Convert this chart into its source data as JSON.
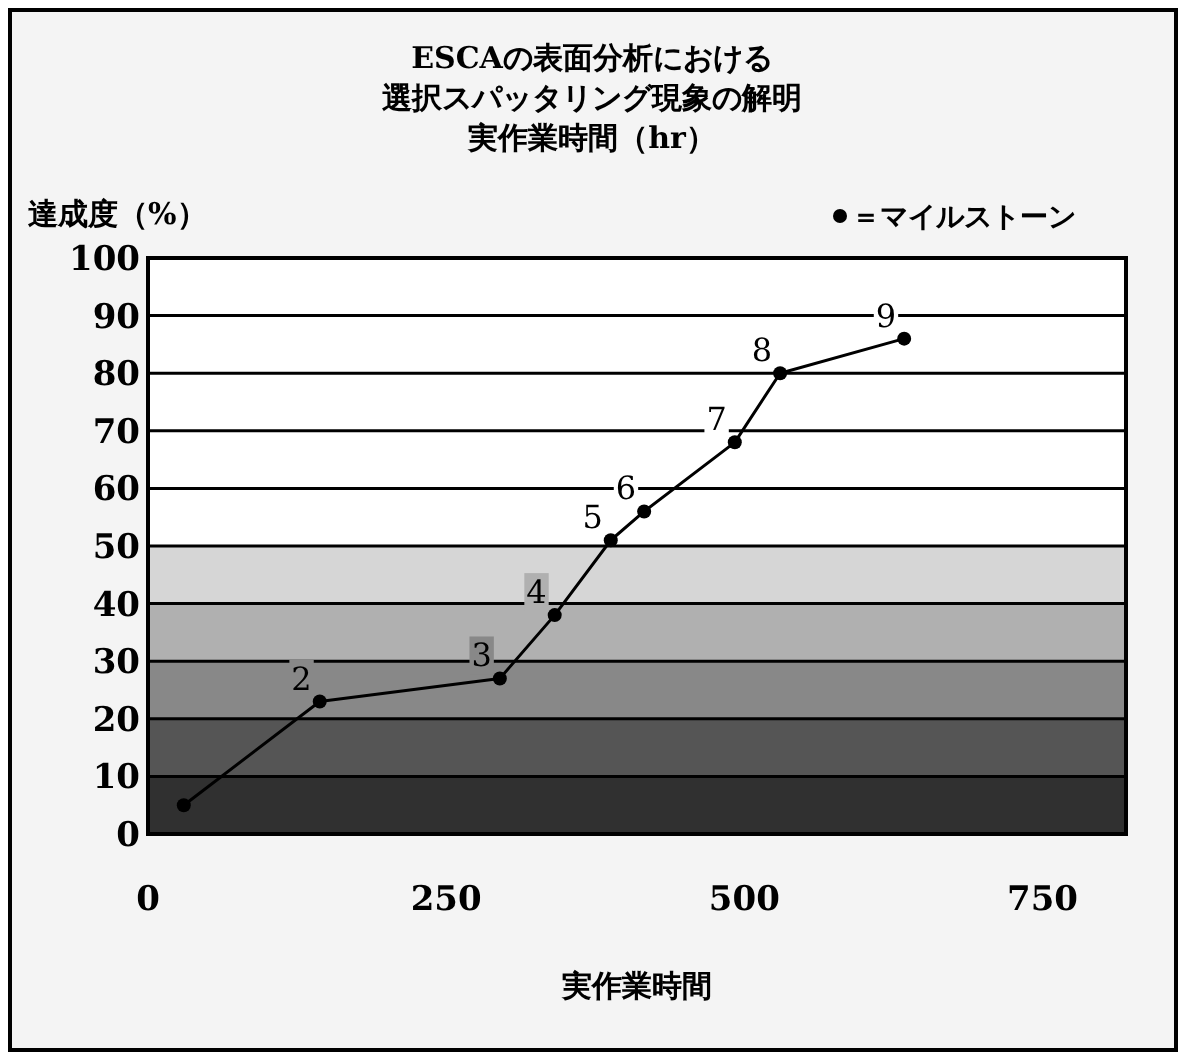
{
  "chart_data": {
    "type": "line",
    "title": "ESCAの表面分析における",
    "subtitle": "選択スパッタリング現象の解明",
    "xlabel": "実作業時間",
    "ylabel": "達成度（%）",
    "x": [
      30,
      144,
      295,
      341,
      388,
      416,
      492,
      530,
      634
    ],
    "series": [
      {
        "name": "＝マイルストーン",
        "color": "#000000",
        "values": [
          5,
          23,
          27,
          38,
          51,
          56,
          68,
          80,
          86
        ]
      }
    ],
    "xlim": [
      0,
      820
    ],
    "xticks": [
      0,
      250,
      500,
      750
    ],
    "ylim": [
      0,
      100
    ],
    "yticks": [
      0,
      10,
      20,
      30,
      40,
      50,
      60,
      70,
      80,
      90,
      100
    ],
    "grid": "y",
    "legend": "top right",
    "marker": "circle",
    "line_style": "solid",
    "bands": [
      {
        "axis": "y",
        "from": 0,
        "to": 10,
        "color": "#303030"
      },
      {
        "axis": "y",
        "from": 10,
        "to": 20,
        "color": "#555555"
      },
      {
        "axis": "y",
        "from": 20,
        "to": 30,
        "color": "#888888"
      },
      {
        "axis": "y",
        "from": 30,
        "to": 40,
        "color": "#b0b0b0"
      },
      {
        "axis": "y",
        "from": 40,
        "to": 50,
        "color": "#d6d6d6"
      }
    ],
    "annotations": [
      "実作業時間（hr）",
      {
        "text": "2",
        "x": 144,
        "y": 23
      },
      {
        "text": "3",
        "x": 295,
        "y": 27
      },
      {
        "text": "4",
        "x": 341,
        "y": 38
      },
      {
        "text": "5",
        "x": 388,
        "y": 51
      },
      {
        "text": "6",
        "x": 416,
        "y": 56
      },
      {
        "text": "7",
        "x": 492,
        "y": 68
      },
      {
        "text": "8",
        "x": 530,
        "y": 80
      },
      {
        "text": "9",
        "x": 634,
        "y": 86
      }
    ]
  }
}
